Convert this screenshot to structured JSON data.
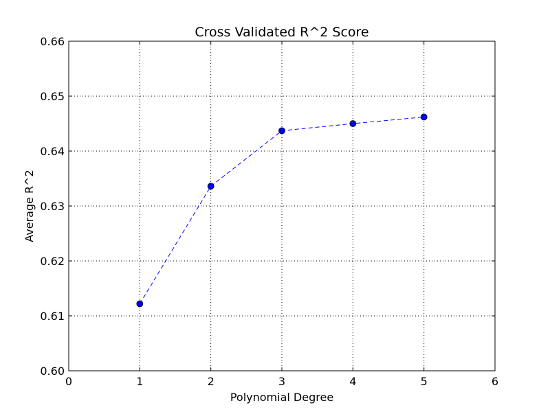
{
  "chart_data": {
    "type": "line",
    "title": "Cross Validated R^2 Score",
    "xlabel": "Polynomial Degree",
    "ylabel": "Average R^2",
    "xlim": [
      0,
      6
    ],
    "ylim": [
      0.6,
      0.66
    ],
    "xticks": [
      0,
      1,
      2,
      3,
      4,
      5,
      6
    ],
    "xtick_labels": [
      "0",
      "1",
      "2",
      "3",
      "4",
      "5",
      "6"
    ],
    "yticks": [
      0.6,
      0.61,
      0.62,
      0.63,
      0.64,
      0.65,
      0.66
    ],
    "ytick_labels": [
      "0.60",
      "0.61",
      "0.62",
      "0.63",
      "0.64",
      "0.65",
      "0.66"
    ],
    "grid": true,
    "grid_style": "dotted",
    "series": [
      {
        "line_style": "dashed",
        "marker": "circle",
        "color": "#0000ff",
        "x": [
          1,
          2,
          3,
          4,
          5
        ],
        "y": [
          0.6122,
          0.6336,
          0.6437,
          0.645,
          0.6462
        ]
      }
    ]
  }
}
